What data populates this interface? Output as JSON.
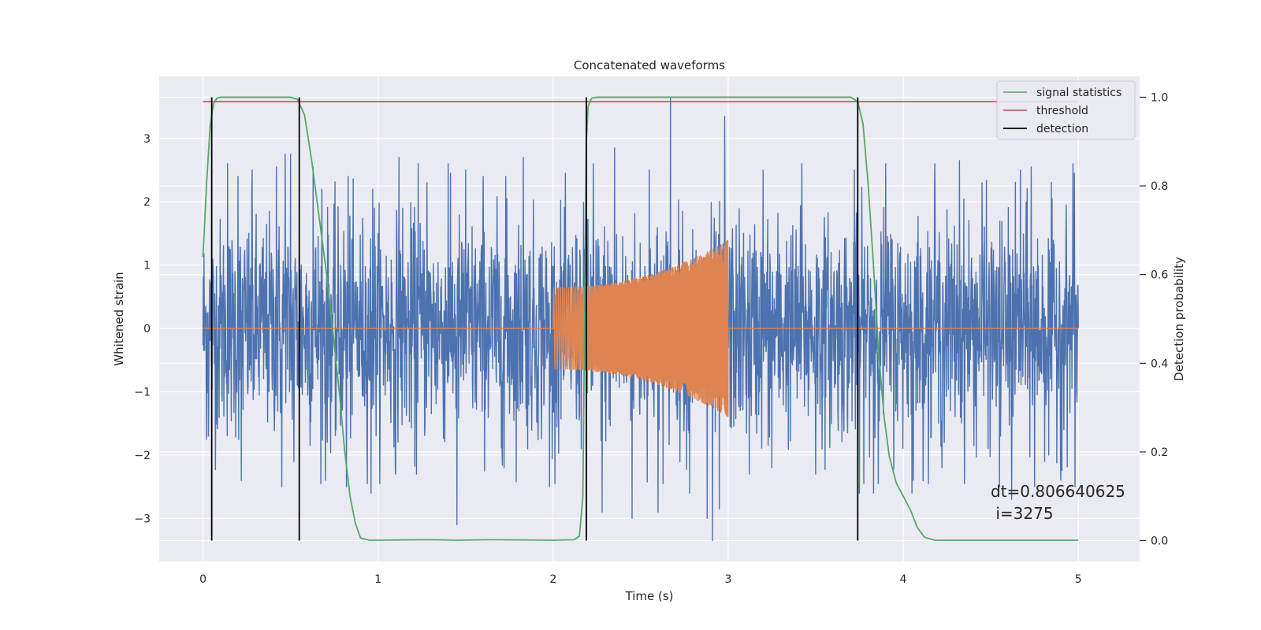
{
  "chart_data": {
    "type": "line",
    "title": "Concatenated waveforms",
    "xlabel": "Time (s)",
    "ylabel": "Whitened strain",
    "y2label": "Detection probability",
    "xlim": [
      -0.25,
      5.35
    ],
    "ylim": [
      -3.68,
      3.98
    ],
    "y2lim": [
      -0.047,
      1.047
    ],
    "xticks": [
      0,
      1,
      2,
      3,
      4,
      5
    ],
    "yticks": [
      -3,
      -2,
      -1,
      0,
      1,
      2,
      3
    ],
    "y2ticks": [
      0.0,
      0.2,
      0.4,
      0.6,
      0.8,
      1.0
    ],
    "grid": true,
    "legend_position": "top-right",
    "annotation": [
      "dt=0.806640625",
      " i=3275"
    ],
    "series": [
      {
        "name": "",
        "axis": "left",
        "color": "#4c72b0",
        "kind": "noise",
        "x_range": [
          0,
          5
        ],
        "peak_points": [
          [
            0.05,
            2.5
          ],
          [
            0.14,
            2.6
          ],
          [
            0.2,
            2.4
          ],
          [
            0.28,
            2.5
          ],
          [
            0.42,
            2.55
          ],
          [
            0.47,
            2.75
          ],
          [
            0.5,
            2.75
          ],
          [
            0.63,
            2.55
          ],
          [
            0.68,
            2.2
          ],
          [
            0.83,
            2.4
          ],
          [
            0.97,
            2.2
          ],
          [
            0.98,
            1.9
          ],
          [
            1.12,
            2.7
          ],
          [
            1.14,
            1.9
          ],
          [
            1.23,
            2.6
          ],
          [
            1.28,
            2.3
          ],
          [
            1.4,
            2.6
          ],
          [
            1.5,
            2.5
          ],
          [
            1.6,
            2.4
          ],
          [
            1.73,
            2.4
          ],
          [
            1.83,
            2.7
          ],
          [
            2.23,
            2.6
          ],
          [
            2.35,
            2.85
          ],
          [
            2.55,
            2.5
          ],
          [
            2.67,
            3.65
          ],
          [
            2.78,
            3.0
          ],
          [
            2.88,
            3.2
          ],
          [
            2.98,
            3.35
          ],
          [
            3.2,
            2.5
          ],
          [
            3.42,
            2.6
          ],
          [
            3.72,
            2.5
          ],
          [
            3.9,
            2.6
          ],
          [
            4.18,
            2.6
          ],
          [
            4.32,
            2.65
          ],
          [
            4.45,
            2.3
          ],
          [
            4.55,
            2.5
          ],
          [
            4.67,
            2.5
          ],
          [
            4.73,
            2.55
          ],
          [
            4.83,
            2.5
          ],
          [
            4.9,
            2.55
          ],
          [
            4.97,
            2.6
          ]
        ],
        "trough_points": [
          [
            0.03,
            -1.7
          ],
          [
            0.22,
            -2.4
          ],
          [
            0.45,
            -2.5
          ],
          [
            0.52,
            -2.1
          ],
          [
            0.7,
            -2.4
          ],
          [
            0.76,
            -1.6
          ],
          [
            0.82,
            -2.5
          ],
          [
            0.96,
            -2.6
          ],
          [
            1.1,
            -2.3
          ],
          [
            1.22,
            -2.3
          ],
          [
            1.45,
            -3.1
          ],
          [
            1.72,
            -2.2
          ],
          [
            1.98,
            -2.5
          ],
          [
            2.28,
            -2.9
          ],
          [
            2.45,
            -3.0
          ],
          [
            2.6,
            -2.9
          ],
          [
            2.78,
            -2.6
          ],
          [
            2.88,
            -3.0
          ],
          [
            2.91,
            -3.35
          ],
          [
            2.95,
            -2.85
          ],
          [
            3.12,
            -2.3
          ],
          [
            3.25,
            -2.2
          ],
          [
            3.5,
            -2.3
          ],
          [
            3.75,
            -2.6
          ],
          [
            3.83,
            -2.6
          ],
          [
            4.05,
            -2.6
          ],
          [
            4.22,
            -2.2
          ],
          [
            4.55,
            -2.5
          ],
          [
            4.62,
            -2.7
          ],
          [
            4.75,
            -2.5
          ],
          [
            4.83,
            -2.0
          ],
          [
            4.9,
            -2.4
          ],
          [
            4.98,
            -2.5
          ]
        ]
      },
      {
        "name": "",
        "axis": "left",
        "color": "#dd8452",
        "kind": "chirp",
        "x_range": [
          0,
          5
        ],
        "chirp_start": 2.0,
        "chirp_end": 3.0,
        "amplitude_start": 0.65,
        "amplitude_end": 1.4
      },
      {
        "name": "signal statistics",
        "axis": "right",
        "color": "#55a868",
        "points": [
          [
            0.0,
            0.64
          ],
          [
            0.02,
            0.8
          ],
          [
            0.04,
            0.93
          ],
          [
            0.06,
            0.985
          ],
          [
            0.08,
            0.998
          ],
          [
            0.1,
            1.0
          ],
          [
            0.5,
            1.0
          ],
          [
            0.54,
            0.995
          ],
          [
            0.58,
            0.96
          ],
          [
            0.62,
            0.86
          ],
          [
            0.66,
            0.74
          ],
          [
            0.7,
            0.62
          ],
          [
            0.74,
            0.48
          ],
          [
            0.78,
            0.33
          ],
          [
            0.81,
            0.2
          ],
          [
            0.84,
            0.1
          ],
          [
            0.87,
            0.04
          ],
          [
            0.9,
            0.006
          ],
          [
            0.95,
            0.001
          ],
          [
            1.3,
            0.002
          ],
          [
            1.45,
            0.001
          ],
          [
            1.65,
            0.002
          ],
          [
            2.0,
            0.001
          ],
          [
            2.12,
            0.002
          ],
          [
            2.15,
            0.01
          ],
          [
            2.17,
            0.1
          ],
          [
            2.18,
            0.5
          ],
          [
            2.19,
            0.9
          ],
          [
            2.2,
            0.98
          ],
          [
            2.22,
            0.998
          ],
          [
            2.25,
            1.0
          ],
          [
            3.7,
            1.0
          ],
          [
            3.74,
            0.99
          ],
          [
            3.77,
            0.94
          ],
          [
            3.8,
            0.8
          ],
          [
            3.83,
            0.62
          ],
          [
            3.86,
            0.42
          ],
          [
            3.89,
            0.28
          ],
          [
            3.92,
            0.19
          ],
          [
            3.96,
            0.13
          ],
          [
            4.0,
            0.1
          ],
          [
            4.04,
            0.07
          ],
          [
            4.08,
            0.03
          ],
          [
            4.12,
            0.008
          ],
          [
            4.18,
            0.001
          ],
          [
            5.0,
            0.001
          ]
        ]
      },
      {
        "name": "threshold",
        "axis": "right",
        "color": "#c44e52",
        "points": [
          [
            0,
            0.99
          ],
          [
            5,
            0.99
          ]
        ]
      },
      {
        "name": "detection",
        "axis": "right",
        "color": "#000000",
        "vlines": [
          0.05,
          0.55,
          2.19,
          3.74
        ],
        "vline_range": [
          0,
          1
        ]
      }
    ]
  }
}
